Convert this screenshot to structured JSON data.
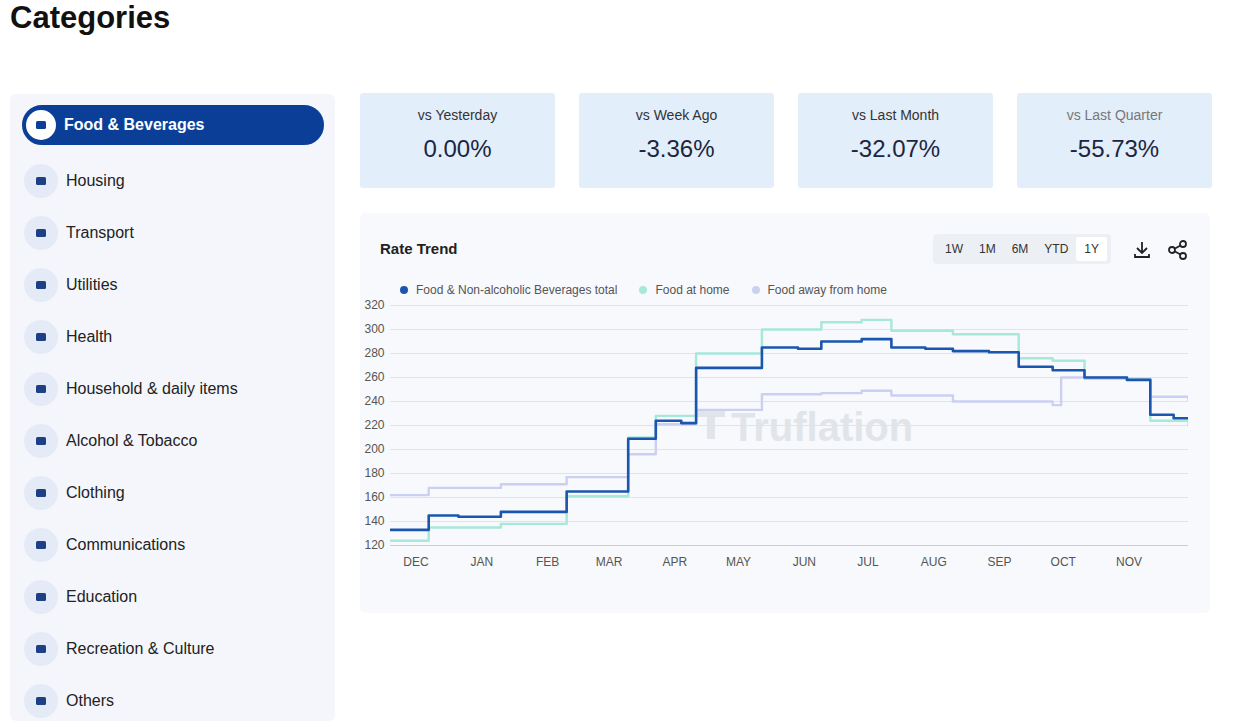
{
  "page": {
    "title": "Categories",
    "sidebar": [
      "Food & Beverages",
      "Housing",
      "Transport",
      "Utilities",
      "Health",
      "Household & daily items",
      "Alcohol & Tobacco",
      "Clothing",
      "Communications",
      "Education",
      "Recreation & Culture",
      "Others"
    ],
    "selected_category": "Food & Beverages",
    "cards": [
      {
        "label": "vs Yesterday",
        "value": "0.00%"
      },
      {
        "label": "vs Week Ago",
        "value": "-3.36%"
      },
      {
        "label": "vs Last Month",
        "value": "-32.07%"
      },
      {
        "label": "vs Last Quarter",
        "value": "-55.73%"
      }
    ],
    "chart_panel": {
      "title": "Rate Trend",
      "ranges": [
        "1W",
        "1M",
        "6M",
        "YTD",
        "1Y"
      ],
      "selected_range": "1Y",
      "watermark": "Truflation"
    }
  },
  "chart_data": {
    "type": "line",
    "line_style": "step",
    "grid": true,
    "legend": "top",
    "xlim": [
      -12,
      364
    ],
    "xticks": [
      {
        "value": 0,
        "label": "DEC"
      },
      {
        "value": 31,
        "label": "JAN"
      },
      {
        "value": 62,
        "label": "FEB"
      },
      {
        "value": 91,
        "label": "MAR"
      },
      {
        "value": 122,
        "label": "APR"
      },
      {
        "value": 152,
        "label": "MAY"
      },
      {
        "value": 183,
        "label": "JUN"
      },
      {
        "value": 213,
        "label": "JUL"
      },
      {
        "value": 244,
        "label": "AUG"
      },
      {
        "value": 275,
        "label": "SEP"
      },
      {
        "value": 305,
        "label": "OCT"
      },
      {
        "value": 336,
        "label": "NOV"
      }
    ],
    "ylim": [
      120,
      320
    ],
    "yticks": [
      120,
      140,
      160,
      180,
      200,
      220,
      240,
      260,
      280,
      300,
      320
    ],
    "series": [
      {
        "name": "Food & Non-alcoholic Beverages total",
        "color": "#1a56b0",
        "x": [
          -12,
          6,
          20,
          40,
          55,
          71,
          100,
          113,
          125,
          132,
          150,
          163,
          180,
          191,
          210,
          224,
          240,
          253,
          270,
          284,
          300,
          315,
          335,
          346,
          357,
          364
        ],
        "values": [
          133,
          145,
          144,
          148,
          148,
          165,
          209,
          224,
          222,
          268,
          268,
          285,
          284,
          290,
          292,
          285,
          284,
          282,
          281,
          269,
          266,
          260,
          258,
          229,
          226,
          226
        ]
      },
      {
        "name": "Food at home",
        "color": "#a6e8da",
        "x": [
          -12,
          6,
          40,
          71,
          100,
          113,
          132,
          163,
          191,
          210,
          224,
          253,
          284,
          300,
          315,
          346,
          364
        ],
        "values": [
          124,
          135,
          138,
          161,
          210,
          228,
          280,
          300,
          306,
          308,
          299,
          296,
          276,
          274,
          259,
          224,
          220
        ]
      },
      {
        "name": "Food away from home",
        "color": "#cbd0f3",
        "x": [
          -12,
          6,
          40,
          71,
          100,
          113,
          132,
          163,
          191,
          210,
          224,
          253,
          284,
          300,
          304,
          335,
          346,
          364
        ],
        "values": [
          162,
          168,
          171,
          177,
          196,
          221,
          233,
          246,
          247,
          249,
          245,
          240,
          240,
          237,
          260,
          258,
          244,
          241
        ]
      }
    ]
  }
}
